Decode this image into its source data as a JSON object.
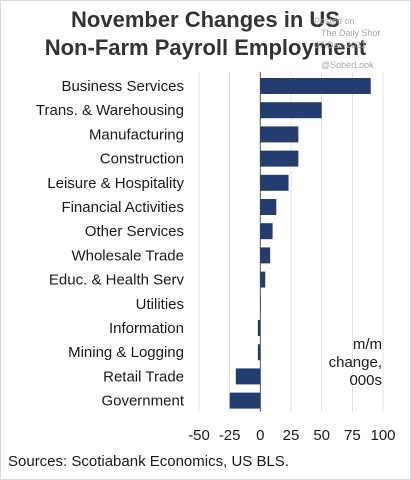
{
  "header": {
    "title_line1": "November Changes in US",
    "title_line2": "Non-Farm Payroll Employment"
  },
  "watermark": {
    "line1": "Posted on",
    "line2": "The Daily Shot",
    "line3": "07-Dec-2021",
    "line4": "@SoberLook"
  },
  "footer": {
    "source": "Sources: Scotiabank Economics, US BLS."
  },
  "colors": {
    "bar": "#233d6e",
    "grid": "#d0d0d0",
    "axis": "#555555"
  },
  "chart_data": {
    "type": "bar",
    "orientation": "horizontal",
    "categories": [
      "Business Services",
      "Trans. & Warehousing",
      "Manufacturing",
      "Construction",
      "Leisure & Hospitality",
      "Financial Activities",
      "Other Services",
      "Wholesale Trade",
      "Educ. & Health Serv",
      "Utilities",
      "Information",
      "Mining & Logging",
      "Retail Trade",
      "Government"
    ],
    "values": [
      90,
      50,
      31,
      31,
      23,
      13,
      10,
      8,
      4,
      0.2,
      -2,
      -2,
      -20,
      -25
    ],
    "unit_label": [
      "m/m",
      "change,",
      "000s"
    ],
    "xlim": [
      -50,
      100
    ],
    "xticks": [
      -50,
      -25,
      0,
      25,
      50,
      75,
      100
    ],
    "grid": true
  }
}
